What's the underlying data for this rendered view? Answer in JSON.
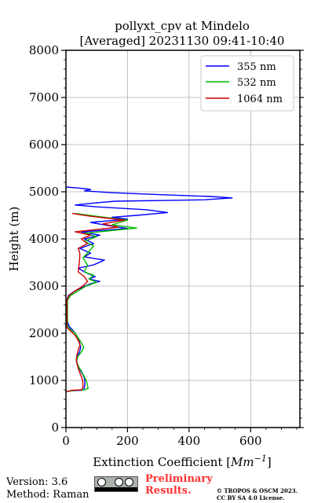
{
  "chart_data": {
    "type": "line",
    "title_line1": "pollyxt_cpv at Mindelo",
    "title_line2": "[Averaged] 20231130 09:41-10:40",
    "xlabel_prefix": "Extinction Coefficient [",
    "xlabel_unit": "Mm",
    "xlabel_exp": "−1",
    "xlabel_suffix": "]",
    "ylabel": "Height (m)",
    "xlim": [
      0,
      760
    ],
    "ylim": [
      0,
      8000
    ],
    "xticks": [
      0,
      200,
      400,
      600
    ],
    "yticks": [
      0,
      1000,
      2000,
      3000,
      4000,
      5000,
      6000,
      7000,
      8000
    ],
    "grid": true,
    "legend_position": "top-right",
    "series": [
      {
        "name": "355 nm",
        "color": "#0000ff",
        "points": [
          [
            0,
            760
          ],
          [
            20,
            780
          ],
          [
            50,
            790
          ],
          [
            58,
            800
          ],
          [
            60,
            850
          ],
          [
            62,
            950
          ],
          [
            60,
            1050
          ],
          [
            55,
            1120
          ],
          [
            48,
            1200
          ],
          [
            40,
            1300
          ],
          [
            34,
            1400
          ],
          [
            36,
            1500
          ],
          [
            44,
            1600
          ],
          [
            48,
            1700
          ],
          [
            44,
            1800
          ],
          [
            40,
            1900
          ],
          [
            30,
            2000
          ],
          [
            20,
            2080
          ],
          [
            10,
            2150
          ],
          [
            5,
            2250
          ],
          [
            3,
            2300
          ],
          [
            2,
            2350
          ],
          [
            3,
            2700
          ],
          [
            8,
            2800
          ],
          [
            30,
            2900
          ],
          [
            55,
            2980
          ],
          [
            80,
            3050
          ],
          [
            110,
            3100
          ],
          [
            75,
            3150
          ],
          [
            95,
            3200
          ],
          [
            60,
            3300
          ],
          [
            40,
            3380
          ],
          [
            90,
            3450
          ],
          [
            125,
            3550
          ],
          [
            60,
            3620
          ],
          [
            80,
            3700
          ],
          [
            45,
            3800
          ],
          [
            90,
            3900
          ],
          [
            60,
            4000
          ],
          [
            110,
            4080
          ],
          [
            50,
            4150
          ],
          [
            200,
            4220
          ],
          [
            140,
            4280
          ],
          [
            80,
            4350
          ],
          [
            200,
            4420
          ],
          [
            150,
            4460
          ],
          [
            230,
            4500
          ],
          [
            330,
            4560
          ],
          [
            260,
            4620
          ],
          [
            100,
            4680
          ],
          [
            30,
            4720
          ],
          [
            90,
            4760
          ],
          [
            160,
            4800
          ],
          [
            450,
            4830
          ],
          [
            540,
            4870
          ],
          [
            470,
            4900
          ],
          [
            300,
            4940
          ],
          [
            150,
            4980
          ],
          [
            60,
            5020
          ],
          [
            80,
            5050
          ],
          [
            40,
            5080
          ],
          [
            0,
            5100
          ]
        ]
      },
      {
        "name": "532 nm",
        "color": "#00bb00",
        "points": [
          [
            0,
            760
          ],
          [
            30,
            790
          ],
          [
            60,
            800
          ],
          [
            72,
            830
          ],
          [
            70,
            900
          ],
          [
            66,
            1000
          ],
          [
            58,
            1100
          ],
          [
            50,
            1200
          ],
          [
            40,
            1300
          ],
          [
            35,
            1400
          ],
          [
            38,
            1500
          ],
          [
            50,
            1600
          ],
          [
            58,
            1700
          ],
          [
            50,
            1800
          ],
          [
            40,
            1900
          ],
          [
            30,
            2000
          ],
          [
            15,
            2080
          ],
          [
            5,
            2150
          ],
          [
            5,
            2700
          ],
          [
            15,
            2800
          ],
          [
            40,
            2900
          ],
          [
            65,
            3000
          ],
          [
            100,
            3080
          ],
          [
            75,
            3150
          ],
          [
            90,
            3230
          ],
          [
            60,
            3300
          ],
          [
            70,
            3450
          ],
          [
            55,
            3600
          ],
          [
            70,
            3700
          ],
          [
            90,
            3850
          ],
          [
            60,
            3950
          ],
          [
            100,
            4050
          ],
          [
            60,
            4120
          ],
          [
            230,
            4230
          ],
          [
            150,
            4300
          ],
          [
            200,
            4400
          ],
          [
            100,
            4480
          ],
          [
            30,
            4540
          ]
        ]
      },
      {
        "name": "1064 nm",
        "color": "#cc0000",
        "points": [
          [
            0,
            760
          ],
          [
            20,
            790
          ],
          [
            50,
            800
          ],
          [
            55,
            850
          ],
          [
            55,
            950
          ],
          [
            52,
            1050
          ],
          [
            46,
            1150
          ],
          [
            40,
            1250
          ],
          [
            36,
            1350
          ],
          [
            34,
            1450
          ],
          [
            36,
            1550
          ],
          [
            40,
            1650
          ],
          [
            46,
            1750
          ],
          [
            40,
            1850
          ],
          [
            30,
            1950
          ],
          [
            20,
            2020
          ],
          [
            10,
            2080
          ],
          [
            3,
            2120
          ],
          [
            3,
            2700
          ],
          [
            10,
            2800
          ],
          [
            30,
            2900
          ],
          [
            55,
            3000
          ],
          [
            70,
            3100
          ],
          [
            60,
            3200
          ],
          [
            40,
            3300
          ],
          [
            45,
            3600
          ],
          [
            45,
            3700
          ],
          [
            40,
            3800
          ],
          [
            70,
            3900
          ],
          [
            50,
            4000
          ],
          [
            80,
            4080
          ],
          [
            30,
            4150
          ],
          [
            170,
            4250
          ],
          [
            120,
            4320
          ],
          [
            190,
            4400
          ],
          [
            80,
            4480
          ],
          [
            20,
            4540
          ]
        ]
      }
    ]
  },
  "footer": {
    "version": "Version: 3.6",
    "method": "Method: Raman",
    "preliminary_line1": "Preliminary",
    "preliminary_line2": "Results.",
    "copyright_line1": "© TROPOS & OSCM 2023.",
    "copyright_line2": "CC BY SA 4.0 License."
  },
  "icons": {
    "license": "cc-by-sa-license-icon"
  }
}
